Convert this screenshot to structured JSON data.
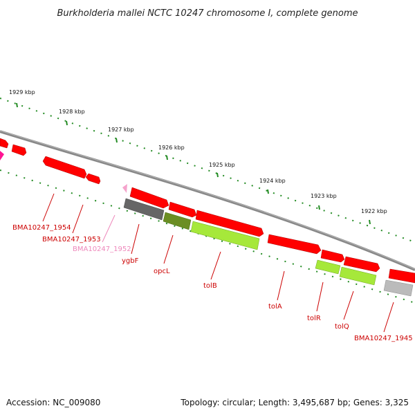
{
  "title": "Burkholderia mallei NCTC 10247 chromosome I, complete genome",
  "footer": {
    "accession": "Accession: NC_009080",
    "summary": "Topology: circular; Length: 3,495,687 bp; Genes: 3,325"
  },
  "ruler": {
    "ticks": [
      {
        "label": "1929 kbp",
        "kbp": 1929
      },
      {
        "label": "1928 kbp",
        "kbp": 1928
      },
      {
        "label": "1927 kbp",
        "kbp": 1927
      },
      {
        "label": "1926 kbp",
        "kbp": 1926
      },
      {
        "label": "1925 kbp",
        "kbp": 1925
      },
      {
        "label": "1924 kbp",
        "kbp": 1924
      },
      {
        "label": "1923 kbp",
        "kbp": 1923
      },
      {
        "label": "1922 kbp",
        "kbp": 1922
      }
    ]
  },
  "colors": {
    "cds_red": "#ff0000",
    "cds_green": "#a6e83a",
    "cds_olive": "#6b8e23",
    "cds_gray": "#666666",
    "cds_lightgray": "#bbbbbb",
    "pseudogene_pink": "#f5a3cc",
    "magenta": "#ff1493",
    "backbone": "#888888",
    "tick_green": "#228b22",
    "label_red": "#cc0000",
    "label_pink": "#ee88bb"
  },
  "gene_labels": [
    {
      "text": "BMA10247_1954",
      "color": "label_red"
    },
    {
      "text": "BMA10247_1953",
      "color": "label_red"
    },
    {
      "text": "BMA10247_1952",
      "color": "label_pink"
    },
    {
      "text": "ygbF",
      "color": "label_red"
    },
    {
      "text": "opcL",
      "color": "label_red"
    },
    {
      "text": "tolB",
      "color": "label_red"
    },
    {
      "text": "tolA",
      "color": "label_red"
    },
    {
      "text": "tolR",
      "color": "label_red"
    },
    {
      "text": "tolQ",
      "color": "label_red"
    },
    {
      "text": "BMA10247_1945",
      "color": "label_red"
    }
  ]
}
